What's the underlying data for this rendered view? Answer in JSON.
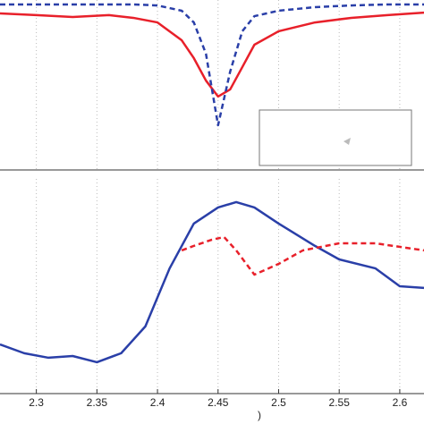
{
  "chart_data": [
    {
      "type": "line",
      "xlim": [
        2.27,
        2.62
      ],
      "ylim": [
        0,
        10
      ],
      "grid": true,
      "series": [
        {
          "name": "",
          "color": "#e8202a",
          "dash": false,
          "x": [
            2.27,
            2.3,
            2.33,
            2.36,
            2.38,
            2.4,
            2.42,
            2.43,
            2.44,
            2.45,
            2.46,
            2.47,
            2.48,
            2.5,
            2.53,
            2.56,
            2.59,
            2.62
          ],
          "values": [
            9.21,
            9.11,
            9.0,
            9.11,
            8.95,
            8.68,
            7.63,
            6.58,
            5.26,
            4.32,
            4.74,
            6.05,
            7.37,
            8.16,
            8.68,
            8.95,
            9.11,
            9.26
          ]
        },
        {
          "name": "",
          "color": "#2a3fa8",
          "dash": true,
          "x": [
            2.27,
            2.3,
            2.33,
            2.36,
            2.38,
            2.4,
            2.42,
            2.43,
            2.44,
            2.45,
            2.46,
            2.47,
            2.48,
            2.5,
            2.53,
            2.56,
            2.59,
            2.62
          ],
          "values": [
            9.74,
            9.74,
            9.74,
            9.74,
            9.74,
            9.68,
            9.37,
            8.68,
            6.84,
            2.63,
            5.79,
            8.16,
            9.05,
            9.37,
            9.58,
            9.68,
            9.74,
            9.74
          ]
        }
      ]
    },
    {
      "type": "line",
      "xlim": [
        2.27,
        2.62
      ],
      "ylim": [
        0,
        10
      ],
      "grid": true,
      "xticks": [
        2.3,
        2.35,
        2.4,
        2.45,
        2.5,
        2.55,
        2.6
      ],
      "x_label": ")",
      "series": [
        {
          "name": "",
          "color": "#2a3fa8",
          "dash": false,
          "x": [
            2.27,
            2.29,
            2.31,
            2.33,
            2.35,
            2.37,
            2.39,
            2.41,
            2.43,
            2.45,
            2.465,
            2.48,
            2.5,
            2.53,
            2.55,
            2.58,
            2.6,
            2.62
          ],
          "values": [
            2.29,
            1.88,
            1.67,
            1.75,
            1.46,
            1.88,
            3.13,
            5.83,
            7.92,
            8.67,
            8.92,
            8.67,
            7.92,
            6.88,
            6.25,
            5.83,
            5.0,
            4.92
          ]
        },
        {
          "name": "",
          "color": "#e8202a",
          "dash": true,
          "x": [
            2.42,
            2.43,
            2.445,
            2.455,
            2.465,
            2.48,
            2.5,
            2.52,
            2.55,
            2.58,
            2.62
          ],
          "values": [
            6.67,
            6.88,
            7.17,
            7.29,
            6.67,
            5.54,
            6.04,
            6.67,
            7.0,
            7.0,
            6.67
          ]
        }
      ]
    }
  ]
}
